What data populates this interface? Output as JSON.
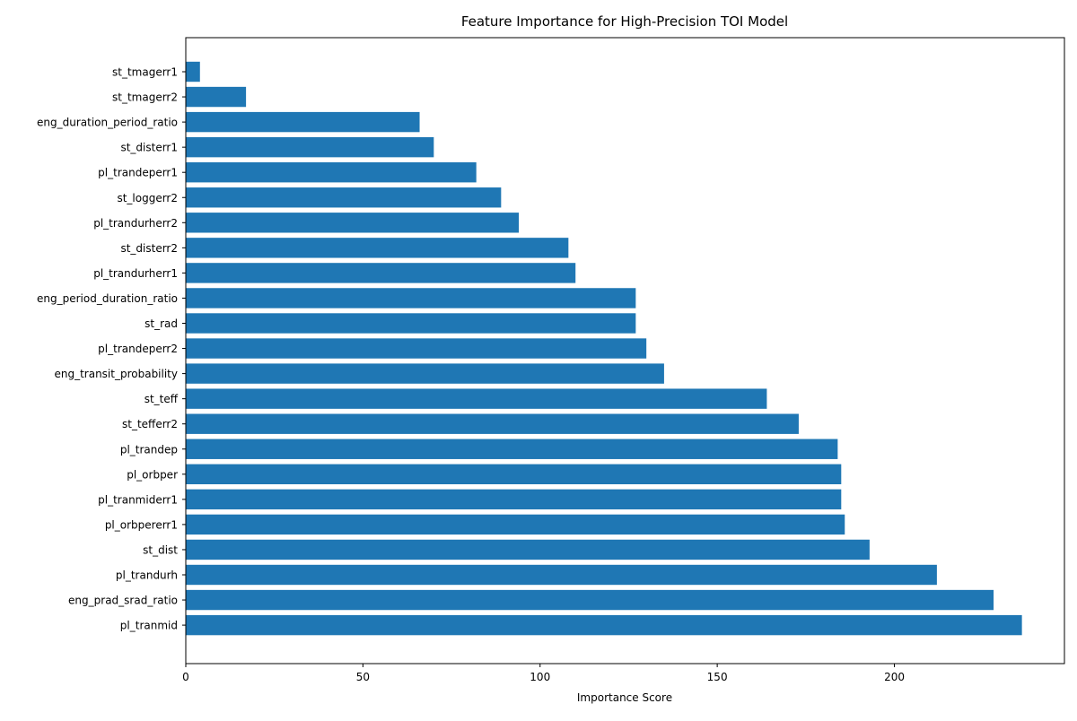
{
  "chart_data": {
    "type": "bar",
    "orientation": "horizontal",
    "title": "Feature Importance for High-Precision TOI Model",
    "xlabel": "Importance Score",
    "ylabel": "",
    "xlim": [
      0,
      248
    ],
    "xticks": [
      "0",
      "50",
      "100",
      "150",
      "200"
    ],
    "xtick_values": [
      0,
      50,
      100,
      150,
      200
    ],
    "grid": false,
    "legend": "none",
    "bar_color": "#1f77b4",
    "categories": [
      "st_tmagerr1",
      "st_tmagerr2",
      "eng_duration_period_ratio",
      "st_disterr1",
      "pl_trandeperr1",
      "st_loggerr2",
      "pl_trandurherr2",
      "st_disterr2",
      "pl_trandurherr1",
      "eng_period_duration_ratio",
      "st_rad",
      "pl_trandeperr2",
      "eng_transit_probability",
      "st_teff",
      "st_tefferr2",
      "pl_trandep",
      "pl_orbper",
      "pl_tranmiderr1",
      "pl_orbpererr1",
      "st_dist",
      "pl_trandurh",
      "eng_prad_srad_ratio",
      "pl_tranmid"
    ],
    "values": [
      4,
      17,
      66,
      70,
      82,
      89,
      94,
      108,
      110,
      127,
      127,
      130,
      135,
      164,
      173,
      184,
      185,
      185,
      186,
      193,
      212,
      228,
      236
    ]
  }
}
